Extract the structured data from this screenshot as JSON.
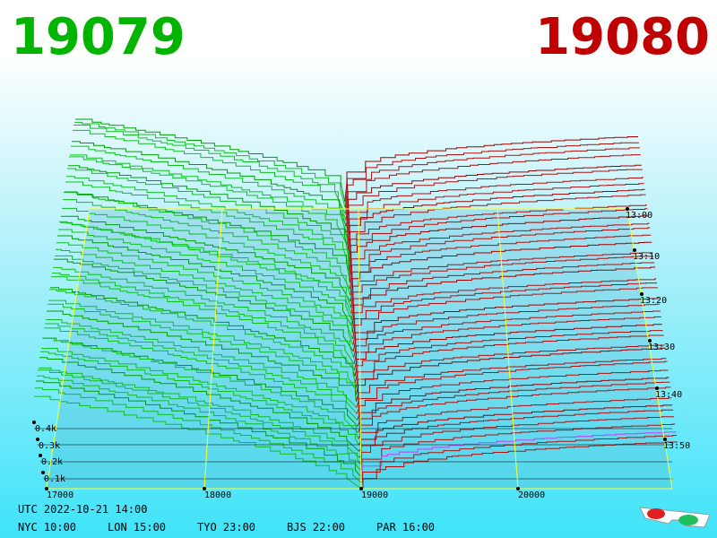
{
  "header": {
    "bid": "19079",
    "ask": "19080"
  },
  "axes": {
    "price_labels": [
      "17000",
      "18000",
      "19000",
      "20000"
    ],
    "time_labels": [
      "13:00",
      "13:10",
      "13:20",
      "13:30",
      "13:40",
      "13:50"
    ],
    "depth_labels": [
      "0.4k",
      "0.3k",
      "0.2k",
      "0.1k"
    ]
  },
  "footer": {
    "utc": "UTC 2022-10-21 14:00",
    "cities": [
      "NYC 10:00",
      "LON 15:00",
      "TYO 23:00",
      "BJS 22:00",
      "PAR 16:00"
    ]
  }
}
